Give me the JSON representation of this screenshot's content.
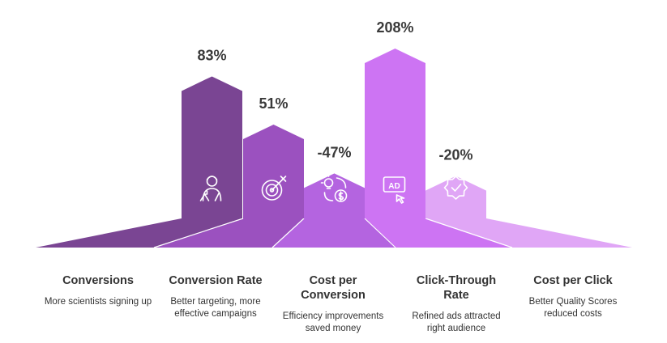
{
  "chart_data": {
    "type": "bar",
    "categories": [
      "Conversions",
      "Conversion Rate",
      "Cost per Conversion",
      "Click-Through Rate",
      "Cost per Click"
    ],
    "values": [
      83,
      51,
      -47,
      208,
      -20
    ],
    "value_labels": [
      "83%",
      "51%",
      "-47%",
      "208%",
      "-20%"
    ],
    "descriptions": [
      "More scientists signing up",
      "Better targeting, more effective campaigns",
      "Efficiency improvements saved money",
      "Refined ads attracted right audience",
      "Better Quality Scores reduced costs"
    ],
    "icons": [
      "scientist-icon",
      "target-icon",
      "efficiency-savings-icon",
      "ad-click-icon",
      "quality-badge-icon"
    ],
    "colors": [
      "#7a4593",
      "#9b51bf",
      "#b464e0",
      "#cd74f3",
      "#e0a6f6"
    ],
    "ylabel": "",
    "xlabel": "",
    "grid": false
  }
}
